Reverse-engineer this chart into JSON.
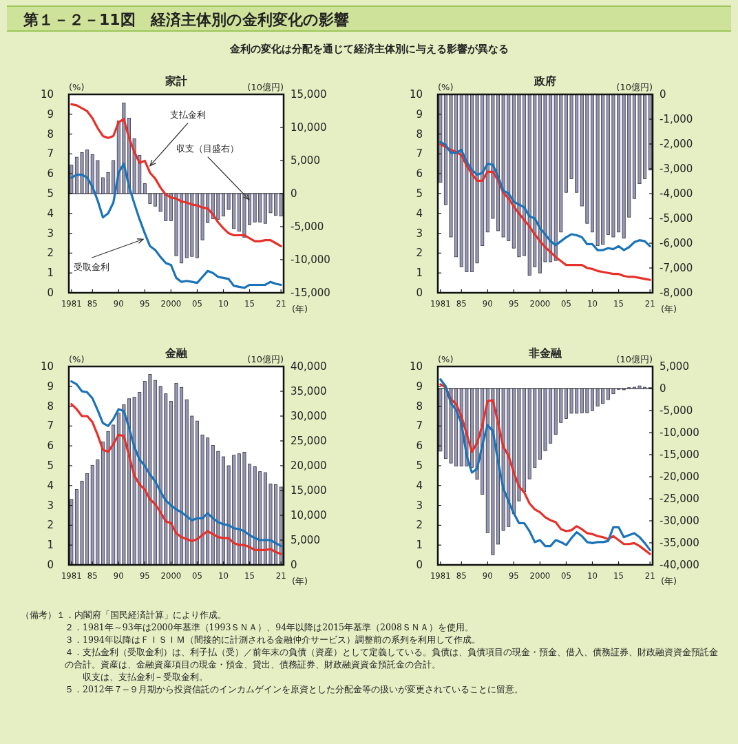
{
  "chart_data": [
    {
      "type": "bar",
      "title": "家計",
      "ylabel": "(%)",
      "y2label": "(10億円)",
      "xlabel": "(年)",
      "annotations": [
        "第１－２－11図　経済主体別の金利変化の影響",
        "金利の変化は分配を通じて経済主体別に与える影響が異なる",
        "（備考）１．内閣府「国民経済計算」により作成。",
        "２．1981年～93年は2000年基準（1993ＳＮＡ）、94年以降は2015年基準（2008ＳＮＡ）を使用。",
        "３．1994年以降はＦＩＳＩＭ（間接的に計測される金融仲介サービス）調整前の系列を利用して作成。",
        "４．支払金利（受取金利）は、利子払（受）／前年末の負債（資産）として定義している。負債は、負債項目の現金・預金、借入、債務証券、財政融資資金預託金の合計。資産は、金融資産項目の現金・預金、貸出、債務証券、財政融資資金預託金の合計。",
        "　　収支は、支払金利－受取金利。",
        "５．2012年７−９月期から投資信託のインカムゲインを原資とした分配金等の扱いが変更されていることに留意。",
        {
          "text": "支払金利",
          "x": 1996,
          "y": 6.4
        },
        {
          "text": "受取金利",
          "x": 1994.7,
          "y": 2.7
        },
        {
          "text": "収支（目盛右）",
          "x": 2014.9,
          "y": 4.7
        }
      ],
      "x": [
        1981,
        1982,
        1983,
        1984,
        1985,
        1986,
        1987,
        1988,
        1989,
        1990,
        1991,
        1992,
        1993,
        1994,
        1995,
        1996,
        1997,
        1998,
        1999,
        2000,
        2001,
        2002,
        2003,
        2004,
        2005,
        2006,
        2007,
        2008,
        2009,
        2010,
        2011,
        2012,
        2013,
        2014,
        2015,
        2016,
        2017,
        2018,
        2019,
        2020,
        2021
      ],
      "xlim": [
        1980.5,
        2021.5
      ],
      "xticks": [
        {
          "value": 1981,
          "label": "1981"
        },
        {
          "value": 1985,
          "label": "85"
        },
        {
          "value": 1990,
          "label": "90"
        },
        {
          "value": 1995,
          "label": "95"
        },
        {
          "value": 2000,
          "label": "2000"
        },
        {
          "value": 2005,
          "label": "05"
        },
        {
          "value": 2010,
          "label": "10"
        },
        {
          "value": 2015,
          "label": "15"
        },
        {
          "value": 2021,
          "label": "21"
        }
      ],
      "ylim": [
        0,
        10
      ],
      "yticks": [
        0,
        1,
        2,
        3,
        4,
        5,
        6,
        7,
        8,
        9,
        10
      ],
      "y2lim": [
        -15000,
        15000
      ],
      "y2ticks": [
        {
          "value": -15000,
          "label": "-15,000"
        },
        {
          "value": -10000,
          "label": "-10,000"
        },
        {
          "value": -5000,
          "label": "-5,000"
        },
        {
          "value": 0,
          "label": "0"
        },
        {
          "value": 5000,
          "label": "5,000"
        },
        {
          "value": 10000,
          "label": "10,000"
        },
        {
          "value": 15000,
          "label": "15,000"
        }
      ],
      "ref_lines": [
        {
          "axis": "y2",
          "value": 0,
          "color": "#000000"
        }
      ],
      "series": [
        {
          "axis": "y2",
          "color": "#9898b4",
          "values": [
            4300,
            5500,
            6200,
            6600,
            5900,
            5000,
            2400,
            3200,
            5000,
            11000,
            13700,
            11400,
            8300,
            5800,
            1500,
            -1500,
            -1900,
            -2700,
            -4100,
            -4100,
            -9400,
            -10500,
            -9700,
            -9500,
            -9700,
            -7000,
            -4400,
            -3800,
            -3900,
            -3400,
            -2400,
            -5300,
            -5700,
            -6600,
            -4700,
            -4300,
            -4300,
            -4500,
            -2900,
            -3300,
            -3400
          ]
        },
        {
          "type": "line",
          "color": "#e8302a",
          "values": [
            9.5,
            9.45,
            9.3,
            9.15,
            8.8,
            8.3,
            7.9,
            7.8,
            7.9,
            8.6,
            8.75,
            7.8,
            7.1,
            6.55,
            6.65,
            6.05,
            5.75,
            5.3,
            4.95,
            4.8,
            4.75,
            4.6,
            4.55,
            4.45,
            4.4,
            4.3,
            4.25,
            3.95,
            3.55,
            3.25,
            3.0,
            2.9,
            2.9,
            2.9,
            2.75,
            2.6,
            2.6,
            2.65,
            2.65,
            2.5,
            2.35
          ]
        },
        {
          "type": "line",
          "color": "#1a73b8",
          "values": [
            5.8,
            5.95,
            5.95,
            5.8,
            5.35,
            4.65,
            3.8,
            4.0,
            4.55,
            6.05,
            6.5,
            5.35,
            4.5,
            3.7,
            3.0,
            2.35,
            2.15,
            1.8,
            1.5,
            1.4,
            0.75,
            0.55,
            0.6,
            0.55,
            0.5,
            0.8,
            1.1,
            1.0,
            0.8,
            0.75,
            0.7,
            0.35,
            0.3,
            0.25,
            0.4,
            0.4,
            0.4,
            0.4,
            0.55,
            0.45,
            0.4
          ]
        }
      ]
    },
    {
      "type": "bar",
      "title": "政府",
      "ylabel": "(%)",
      "y2label": "(10億円)",
      "xlabel": "(年)",
      "x": [
        1981,
        1982,
        1983,
        1984,
        1985,
        1986,
        1987,
        1988,
        1989,
        1990,
        1991,
        1992,
        1993,
        1994,
        1995,
        1996,
        1997,
        1998,
        1999,
        2000,
        2001,
        2002,
        2003,
        2004,
        2005,
        2006,
        2007,
        2008,
        2009,
        2010,
        2011,
        2012,
        2013,
        2014,
        2015,
        2016,
        2017,
        2018,
        2019,
        2020,
        2021
      ],
      "xlim": [
        1980.5,
        2021.5
      ],
      "xticks": [
        {
          "value": 1981,
          "label": "1981"
        },
        {
          "value": 1985,
          "label": "85"
        },
        {
          "value": 1990,
          "label": "90"
        },
        {
          "value": 1995,
          "label": "95"
        },
        {
          "value": 2000,
          "label": "2000"
        },
        {
          "value": 2005,
          "label": "05"
        },
        {
          "value": 2010,
          "label": "10"
        },
        {
          "value": 2015,
          "label": "15"
        },
        {
          "value": 2021,
          "label": "21"
        }
      ],
      "ylim": [
        0,
        10
      ],
      "yticks": [
        0,
        1,
        2,
        3,
        4,
        5,
        6,
        7,
        8,
        9,
        10
      ],
      "y2lim": [
        -8000,
        0
      ],
      "y2ticks": [
        {
          "value": -8000,
          "label": "-8,000"
        },
        {
          "value": -7000,
          "label": "-7,000"
        },
        {
          "value": -6000,
          "label": "-6,000"
        },
        {
          "value": -5000,
          "label": "-5,000"
        },
        {
          "value": -4000,
          "label": "-4,000"
        },
        {
          "value": -3000,
          "label": "-3,000"
        },
        {
          "value": -2000,
          "label": "-2,000"
        },
        {
          "value": -1000,
          "label": "-1,000"
        },
        {
          "value": 0,
          "label": "0"
        }
      ],
      "series": [
        {
          "axis": "y2",
          "color": "#9898b4",
          "values": [
            -3550,
            -4450,
            -5750,
            -6550,
            -6950,
            -7150,
            -7150,
            -6800,
            -6100,
            -5550,
            -5000,
            -5500,
            -5750,
            -5900,
            -6200,
            -6550,
            -6500,
            -7300,
            -6950,
            -7200,
            -6750,
            -6750,
            -6700,
            -5550,
            -3950,
            -3400,
            -3950,
            -4500,
            -5200,
            -5550,
            -6100,
            -6050,
            -5650,
            -5750,
            -5550,
            -5800,
            -4950,
            -4200,
            -3600,
            -3400,
            -3050
          ]
        },
        {
          "type": "line",
          "color": "#e8302a",
          "values": [
            7.5,
            7.35,
            7.2,
            7.1,
            6.95,
            6.4,
            6.0,
            5.65,
            5.65,
            6.1,
            6.1,
            5.65,
            5.05,
            4.75,
            4.35,
            4.0,
            3.65,
            3.35,
            2.95,
            2.6,
            2.3,
            2.05,
            1.8,
            1.6,
            1.4,
            1.4,
            1.4,
            1.4,
            1.25,
            1.2,
            1.1,
            1.05,
            1.0,
            0.95,
            0.95,
            0.85,
            0.8,
            0.8,
            0.75,
            0.7,
            0.65
          ]
        },
        {
          "type": "line",
          "color": "#1a73b8",
          "values": [
            7.6,
            7.45,
            7.05,
            7.05,
            7.2,
            6.6,
            6.2,
            5.95,
            6.05,
            6.5,
            6.45,
            5.85,
            5.15,
            5.0,
            4.6,
            4.45,
            4.3,
            3.85,
            3.75,
            3.25,
            2.95,
            2.6,
            2.4,
            2.6,
            2.8,
            2.95,
            2.9,
            2.8,
            2.45,
            2.45,
            2.15,
            2.15,
            2.25,
            2.2,
            2.35,
            2.15,
            2.3,
            2.55,
            2.65,
            2.6,
            2.35
          ]
        }
      ]
    },
    {
      "type": "bar",
      "title": "金融",
      "ylabel": "(%)",
      "y2label": "(10億円)",
      "xlabel": "(年)",
      "x": [
        1981,
        1982,
        1983,
        1984,
        1985,
        1986,
        1987,
        1988,
        1989,
        1990,
        1991,
        1992,
        1993,
        1994,
        1995,
        1996,
        1997,
        1998,
        1999,
        2000,
        2001,
        2002,
        2003,
        2004,
        2005,
        2006,
        2007,
        2008,
        2009,
        2010,
        2011,
        2012,
        2013,
        2014,
        2015,
        2016,
        2017,
        2018,
        2019,
        2020,
        2021
      ],
      "xlim": [
        1980.5,
        2021.5
      ],
      "xticks": [
        {
          "value": 1981,
          "label": "1981"
        },
        {
          "value": 1985,
          "label": "85"
        },
        {
          "value": 1990,
          "label": "90"
        },
        {
          "value": 1995,
          "label": "95"
        },
        {
          "value": 2000,
          "label": "2000"
        },
        {
          "value": 2005,
          "label": "05"
        },
        {
          "value": 2010,
          "label": "10"
        },
        {
          "value": 2015,
          "label": "15"
        },
        {
          "value": 2021,
          "label": "21"
        }
      ],
      "ylim": [
        0,
        10
      ],
      "yticks": [
        0,
        1,
        2,
        3,
        4,
        5,
        6,
        7,
        8,
        9,
        10
      ],
      "y2lim": [
        0,
        40000
      ],
      "y2ticks": [
        {
          "value": 0,
          "label": "0"
        },
        {
          "value": 5000,
          "label": "5,000"
        },
        {
          "value": 10000,
          "label": "10,000"
        },
        {
          "value": 15000,
          "label": "15,000"
        },
        {
          "value": 20000,
          "label": "20,000"
        },
        {
          "value": 25000,
          "label": "25,000"
        },
        {
          "value": 30000,
          "label": "30,000"
        },
        {
          "value": 35000,
          "label": "35,000"
        },
        {
          "value": 40000,
          "label": "40,000"
        }
      ],
      "series": [
        {
          "axis": "y2",
          "color": "#9898b4",
          "values": [
            13200,
            15200,
            16900,
            18400,
            20100,
            21200,
            24800,
            26900,
            28200,
            30600,
            32300,
            33500,
            33800,
            34800,
            37000,
            38400,
            37200,
            36000,
            34500,
            33000,
            36600,
            35800,
            33300,
            30000,
            29000,
            26200,
            25600,
            24100,
            22900,
            21800,
            20000,
            22100,
            22400,
            22700,
            20300,
            19800,
            18800,
            18600,
            16300,
            16200,
            15700
          ]
        },
        {
          "type": "line",
          "color": "#e8302a",
          "values": [
            8.1,
            7.85,
            7.5,
            7.5,
            7.2,
            6.55,
            5.8,
            5.7,
            6.1,
            6.55,
            6.5,
            5.5,
            4.5,
            4.05,
            3.8,
            3.3,
            3.05,
            2.65,
            2.2,
            2.1,
            1.6,
            1.4,
            1.3,
            1.2,
            1.3,
            1.5,
            1.7,
            1.55,
            1.4,
            1.35,
            1.35,
            1.1,
            1.0,
            1.0,
            0.9,
            0.75,
            0.75,
            0.75,
            0.8,
            0.65,
            0.55
          ]
        },
        {
          "type": "line",
          "color": "#1a73b8",
          "values": [
            9.25,
            9.1,
            8.75,
            8.7,
            8.4,
            7.8,
            7.15,
            7.0,
            7.35,
            7.85,
            7.75,
            6.9,
            5.95,
            5.3,
            5.0,
            4.55,
            4.2,
            3.7,
            3.25,
            3.0,
            2.8,
            2.65,
            2.45,
            2.25,
            2.35,
            2.35,
            2.6,
            2.35,
            2.15,
            2.05,
            2.0,
            1.85,
            1.8,
            1.7,
            1.5,
            1.35,
            1.25,
            1.25,
            1.25,
            1.1,
            0.95
          ]
        }
      ]
    },
    {
      "type": "bar",
      "title": "非金融",
      "ylabel": "(%)",
      "y2label": "(10億円)",
      "xlabel": "(年)",
      "x": [
        1981,
        1982,
        1983,
        1984,
        1985,
        1986,
        1987,
        1988,
        1989,
        1990,
        1991,
        1992,
        1993,
        1994,
        1995,
        1996,
        1997,
        1998,
        1999,
        2000,
        2001,
        2002,
        2003,
        2004,
        2005,
        2006,
        2007,
        2008,
        2009,
        2010,
        2011,
        2012,
        2013,
        2014,
        2015,
        2016,
        2017,
        2018,
        2019,
        2020,
        2021
      ],
      "xlim": [
        1980.5,
        2021.5
      ],
      "xticks": [
        {
          "value": 1981,
          "label": "1981"
        },
        {
          "value": 1985,
          "label": "85"
        },
        {
          "value": 1990,
          "label": "90"
        },
        {
          "value": 1995,
          "label": "95"
        },
        {
          "value": 2000,
          "label": "2000"
        },
        {
          "value": 2005,
          "label": "05"
        },
        {
          "value": 2010,
          "label": "10"
        },
        {
          "value": 2015,
          "label": "15"
        },
        {
          "value": 2021,
          "label": "21"
        }
      ],
      "ylim": [
        0,
        10
      ],
      "yticks": [
        0,
        1,
        2,
        3,
        4,
        5,
        6,
        7,
        8,
        9,
        10
      ],
      "y2lim": [
        -40000,
        5000
      ],
      "y2ticks": [
        {
          "value": -40000,
          "label": "-40,000"
        },
        {
          "value": -35000,
          "label": "-35,000"
        },
        {
          "value": -30000,
          "label": "-30,000"
        },
        {
          "value": -25000,
          "label": "-25,000"
        },
        {
          "value": -20000,
          "label": "-20,000"
        },
        {
          "value": -15000,
          "label": "-15,000"
        },
        {
          "value": -10000,
          "label": "-10,000"
        },
        {
          "value": -5000,
          "label": "-5,000"
        },
        {
          "value": 0,
          "label": "0"
        },
        {
          "value": 5000,
          "label": "5,000"
        }
      ],
      "ref_lines": [
        {
          "axis": "y2",
          "value": 0,
          "color": "#000000"
        }
      ],
      "series": [
        {
          "axis": "y2",
          "color": "#9898b4",
          "values": [
            -14200,
            -15900,
            -16900,
            -17600,
            -17600,
            -17600,
            -17900,
            -20600,
            -24000,
            -32700,
            -37700,
            -35300,
            -32200,
            -31300,
            -28400,
            -25500,
            -23400,
            -20500,
            -17900,
            -16100,
            -14100,
            -12400,
            -10400,
            -7700,
            -6800,
            -5600,
            -5600,
            -5500,
            -5500,
            -5000,
            -4000,
            -3400,
            -2500,
            -1200,
            -200,
            -300,
            200,
            300,
            600,
            300,
            200
          ]
        },
        {
          "type": "line",
          "color": "#e8302a",
          "values": [
            9.1,
            8.95,
            8.35,
            8.1,
            7.5,
            6.6,
            5.7,
            6.15,
            7.05,
            8.25,
            8.3,
            7.15,
            5.95,
            5.5,
            4.65,
            3.95,
            3.65,
            3.1,
            2.8,
            2.65,
            2.4,
            2.25,
            2.15,
            1.8,
            1.7,
            1.75,
            1.95,
            1.8,
            1.6,
            1.55,
            1.45,
            1.4,
            1.3,
            1.45,
            1.25,
            1.05,
            1.05,
            1.1,
            0.95,
            0.75,
            0.55
          ]
        },
        {
          "type": "line",
          "color": "#1a73b8",
          "values": [
            9.35,
            9.0,
            8.15,
            7.8,
            7.15,
            5.5,
            4.65,
            4.85,
            6.05,
            7.05,
            6.75,
            5.2,
            3.85,
            3.2,
            2.6,
            2.1,
            2.1,
            1.7,
            1.15,
            1.25,
            0.95,
            0.95,
            1.25,
            1.15,
            1.0,
            1.35,
            1.65,
            1.45,
            1.15,
            1.1,
            1.15,
            1.15,
            1.2,
            1.9,
            1.9,
            1.4,
            1.5,
            1.6,
            1.4,
            1.1,
            0.75
          ]
        }
      ]
    }
  ]
}
